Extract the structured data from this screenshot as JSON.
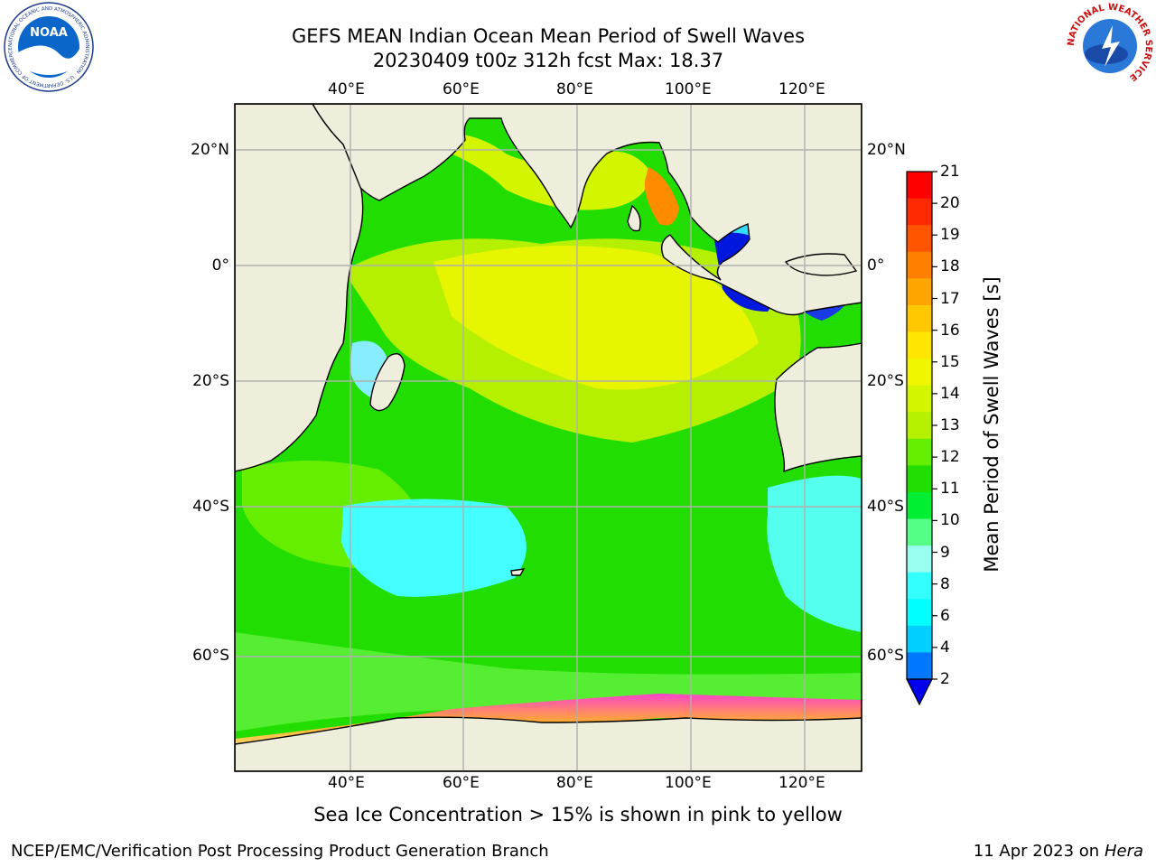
{
  "title": {
    "line1": "GEFS MEAN Indian Ocean Mean Period of Swell Waves",
    "line2": "20230409 t00z 312h fcst   Max: 18.37"
  },
  "map": {
    "lon_ticks": [
      "40°E",
      "60°E",
      "80°E",
      "100°E",
      "120°E"
    ],
    "lat_ticks": [
      "20°N",
      "0°",
      "20°S",
      "40°S",
      "60°S"
    ],
    "land_color": "#efeedd",
    "grid_color": "#b0b0b0"
  },
  "colorbar": {
    "label": "Mean Period of Swell Waves [s]",
    "ticks": [
      "21",
      "20",
      "19",
      "18",
      "17",
      "16",
      "15",
      "14",
      "13",
      "12",
      "11",
      "10",
      "9",
      "8",
      "6",
      "4",
      "2"
    ],
    "colors": [
      "#ff0000",
      "#ff2a00",
      "#ff5500",
      "#ff7f00",
      "#ffa500",
      "#ffc800",
      "#ffe600",
      "#f0f500",
      "#d4f500",
      "#b4f000",
      "#66ee00",
      "#22dd00",
      "#00ee33",
      "#55ff88",
      "#99ffee",
      "#33ffff",
      "#00ffff",
      "#00d0ff",
      "#0077ff"
    ],
    "extend_color": "#0000ee"
  },
  "note": "Sea Ice Concentration > 15% is shown in pink to yellow",
  "footer": {
    "left": "NCEP/EMC/Verification Post Processing Product Generation Branch",
    "date": "11 Apr 2023 on ",
    "machine": "Hera"
  },
  "logos": {
    "noaa_text": "NOAA",
    "noaa_ring": "NATIONAL OCEANIC AND ATMOSPHERIC ADMINISTRATION · U.S. DEPARTMENT OF COMMERCE",
    "nws_ring": "NATIONAL WEATHER SERVICE"
  }
}
